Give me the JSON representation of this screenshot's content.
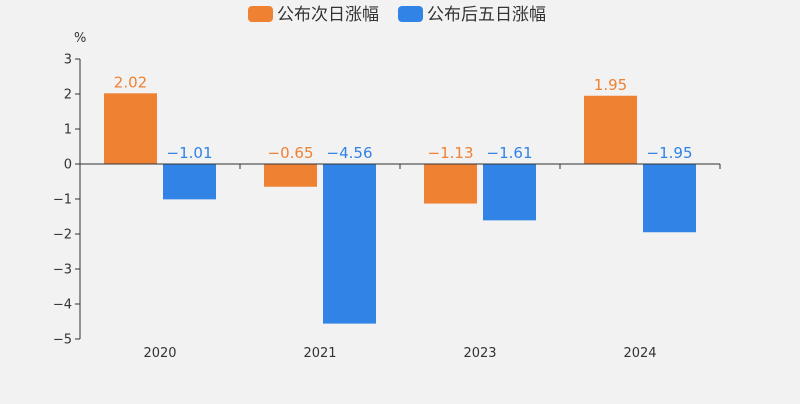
{
  "colors": {
    "background": "#f2f2f2",
    "axis": "#333333",
    "series_1": "#ef8133",
    "series_2": "#3183e6"
  },
  "chart_data": {
    "type": "bar",
    "title": "",
    "xlabel": "",
    "ylabel": "%",
    "categories": [
      "2020",
      "2021",
      "2023",
      "2024"
    ],
    "series": [
      {
        "name": "公布次日涨幅",
        "color": "#ef8133",
        "values": [
          2.02,
          -0.65,
          -1.13,
          1.95
        ],
        "labels": [
          "2.02",
          "−0.65",
          "−1.13",
          "1.95"
        ]
      },
      {
        "name": "公布后五日涨幅",
        "color": "#3183e6",
        "values": [
          -1.01,
          -4.56,
          -1.61,
          -1.95
        ],
        "labels": [
          "−1.01",
          "−4.56",
          "−1.61",
          "−1.95"
        ]
      }
    ],
    "ylim": [
      -5,
      3
    ],
    "yticks": [
      3,
      2,
      1,
      0,
      -1,
      -2,
      -3,
      -4,
      -5
    ],
    "ytick_labels": [
      "3",
      "2",
      "1",
      "0",
      "−1",
      "−2",
      "−3",
      "−4",
      "−5"
    ],
    "grid": false,
    "legend": "top-center",
    "data_labels": true
  }
}
